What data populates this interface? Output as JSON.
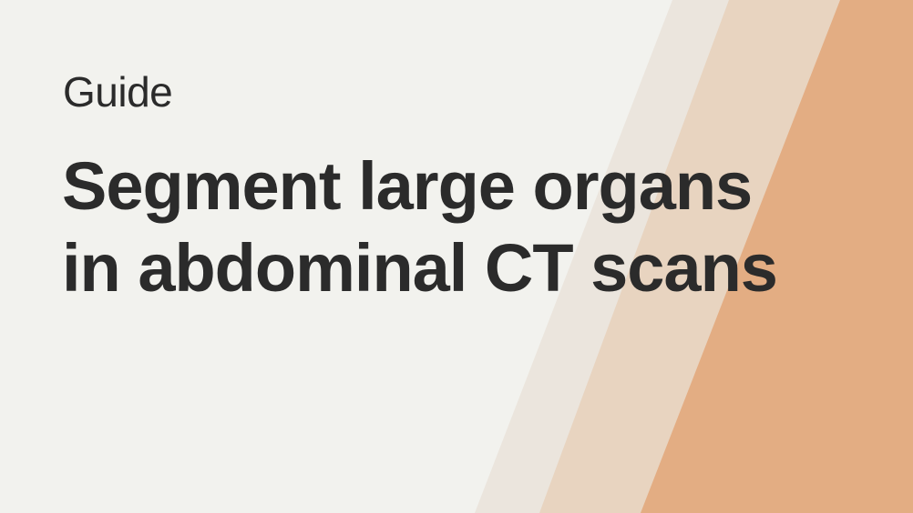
{
  "banner": {
    "eyebrow": "Guide",
    "title_line_1": "Segment large organs",
    "title_line_2": "in abdominal CT scans"
  },
  "colors": {
    "background": "#f2f2ee",
    "stripe_light": "#ebe5dd",
    "stripe_mid": "#e8d4c0",
    "stripe_accent": "#e3ad83",
    "text": "#2b2b2b",
    "text_over_accent": "#1c0e09"
  }
}
